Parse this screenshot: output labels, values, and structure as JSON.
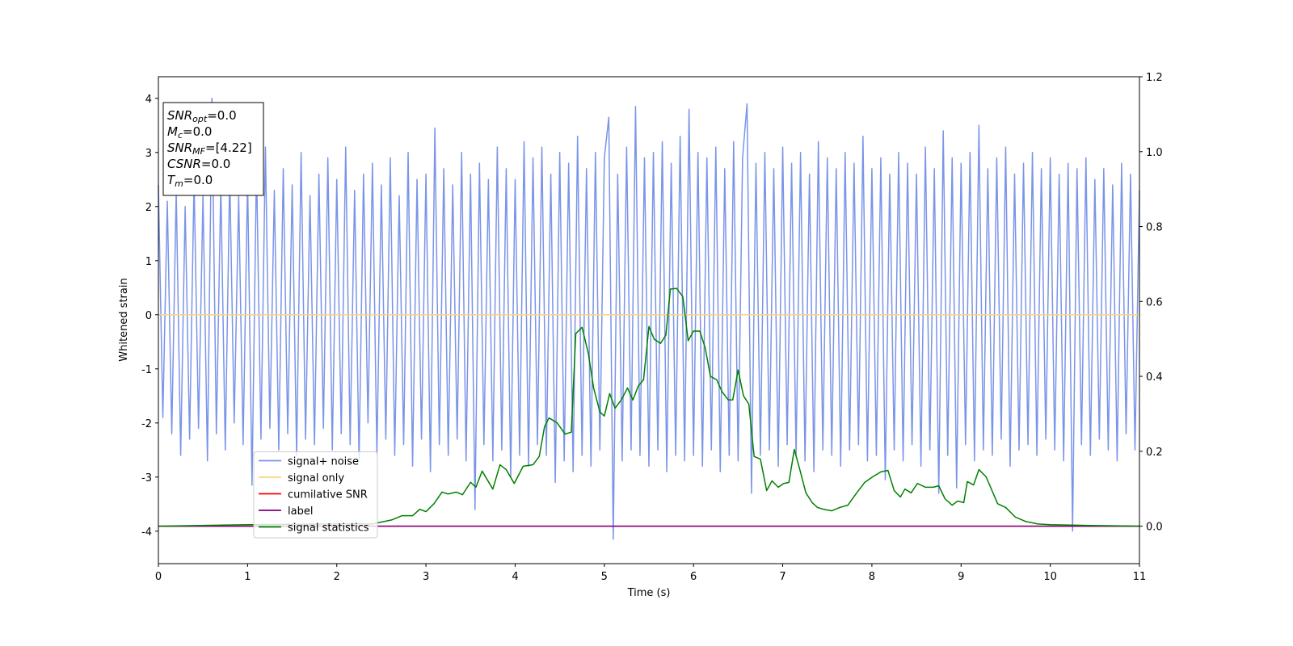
{
  "chart_data": {
    "type": "line",
    "xlabel": "Time (s)",
    "ylabel": "Whitened strain",
    "xlim": [
      0,
      11
    ],
    "ylim": [
      -4.6,
      4.4
    ],
    "y2lim": [
      -0.1,
      1.2
    ],
    "xticks": [
      0,
      1,
      2,
      3,
      4,
      5,
      6,
      7,
      8,
      9,
      10,
      11
    ],
    "yticks": [
      -4,
      -3,
      -2,
      -1,
      0,
      1,
      2,
      3,
      4
    ],
    "y2ticks": [
      {
        "value": 0,
        "label": "0.0"
      },
      0.2,
      0.4,
      0.6,
      0.8,
      {
        "value": 1,
        "label": "1.0"
      },
      1.2
    ],
    "legend": "lower left",
    "annotation": [
      {
        "text": "SNR",
        "sub": "opt",
        "value": "=0.0"
      },
      {
        "text": "M",
        "sub": "c",
        "value": "=0.0"
      },
      {
        "text": "SNR",
        "sub": "MF",
        "value": "=[4.22]"
      },
      {
        "text": "CSNR",
        "value": "=0.0"
      },
      {
        "text": "T",
        "sub": "m",
        "value": "=0.0"
      }
    ],
    "series": [
      {
        "name": "signal+ noise",
        "color": "#7a94e8",
        "x": [
          0,
          0.05,
          0.1,
          0.15,
          0.2,
          0.25,
          0.3,
          0.35,
          0.4,
          0.45,
          0.5,
          0.55,
          0.6,
          0.65,
          0.7,
          0.75,
          0.8,
          0.85,
          0.9,
          0.95,
          1,
          1.05,
          1.1,
          1.15,
          1.2,
          1.25,
          1.3,
          1.35,
          1.4,
          1.45,
          1.5,
          1.55,
          1.6,
          1.65,
          1.7,
          1.75,
          1.8,
          1.85,
          1.9,
          1.95,
          2,
          2.05,
          2.1,
          2.15,
          2.2,
          2.25,
          2.3,
          2.35,
          2.4,
          2.45,
          2.5,
          2.55,
          2.6,
          2.65,
          2.7,
          2.75,
          2.8,
          2.85,
          2.9,
          2.95,
          3,
          3.05,
          3.1,
          3.15,
          3.2,
          3.25,
          3.3,
          3.35,
          3.4,
          3.45,
          3.5,
          3.55,
          3.6,
          3.65,
          3.7,
          3.75,
          3.8,
          3.85,
          3.9,
          3.95,
          4,
          4.05,
          4.1,
          4.15,
          4.2,
          4.25,
          4.3,
          4.35,
          4.4,
          4.45,
          4.5,
          4.55,
          4.6,
          4.65,
          4.7,
          4.75,
          4.8,
          4.85,
          4.9,
          4.95,
          5,
          5.05,
          5.1,
          5.15,
          5.2,
          5.25,
          5.3,
          5.35,
          5.4,
          5.45,
          5.5,
          5.55,
          5.6,
          5.65,
          5.7,
          5.75,
          5.8,
          5.85,
          5.9,
          5.95,
          6,
          6.05,
          6.1,
          6.15,
          6.2,
          6.25,
          6.3,
          6.35,
          6.4,
          6.45,
          6.5,
          6.55,
          6.6,
          6.65,
          6.7,
          6.75,
          6.8,
          6.85,
          6.9,
          6.95,
          7,
          7.05,
          7.1,
          7.15,
          7.2,
          7.25,
          7.3,
          7.35,
          7.4,
          7.45,
          7.5,
          7.55,
          7.6,
          7.65,
          7.7,
          7.75,
          7.8,
          7.85,
          7.9,
          7.95,
          8,
          8.05,
          8.1,
          8.15,
          8.2,
          8.25,
          8.3,
          8.35,
          8.4,
          8.45,
          8.5,
          8.55,
          8.6,
          8.65,
          8.7,
          8.75,
          8.8,
          8.85,
          8.9,
          8.95,
          9,
          9.05,
          9.1,
          9.15,
          9.2,
          9.25,
          9.3,
          9.35,
          9.4,
          9.45,
          9.5,
          9.55,
          9.6,
          9.65,
          9.7,
          9.75,
          9.8,
          9.85,
          9.9,
          9.95,
          10,
          10.05,
          10.1,
          10.15,
          10.2,
          10.25,
          10.3,
          10.35,
          10.4,
          10.45,
          10.5,
          10.55,
          10.6,
          10.65,
          10.7,
          10.75,
          10.8,
          10.85,
          10.9,
          10.95,
          11
        ],
        "values": [
          2.4,
          -1.9,
          2.1,
          -2.2,
          2.3,
          -2.6,
          2.0,
          -2.3,
          2.5,
          -2.1,
          2.2,
          -2.7,
          4.0,
          -2.2,
          2.4,
          -2.5,
          2.6,
          -2.0,
          2.2,
          -2.4,
          2.5,
          -3.15,
          2.8,
          -2.3,
          3.1,
          -2.1,
          2.3,
          -2.5,
          2.7,
          -2.2,
          2.4,
          -2.6,
          3.0,
          -2.3,
          2.2,
          -2.4,
          2.6,
          -2.1,
          2.9,
          -2.5,
          2.5,
          -2.2,
          3.1,
          -2.4,
          2.3,
          -2.7,
          2.6,
          -2.0,
          2.8,
          -2.6,
          2.4,
          -2.3,
          2.9,
          -2.6,
          2.2,
          -2.4,
          3.0,
          -2.8,
          2.5,
          -2.3,
          2.6,
          -2.9,
          3.45,
          -2.4,
          2.7,
          -2.6,
          2.4,
          -2.3,
          3.0,
          -2.7,
          2.6,
          -3.6,
          2.8,
          -2.4,
          2.5,
          -2.7,
          3.1,
          -2.5,
          2.7,
          -3.0,
          2.5,
          -2.6,
          3.2,
          -2.8,
          2.9,
          -2.4,
          3.1,
          -2.6,
          2.6,
          -3.1,
          3.0,
          -2.7,
          2.8,
          -2.9,
          3.3,
          -2.6,
          2.7,
          -2.8,
          3.0,
          -2.5,
          2.9,
          3.65,
          -4.15,
          2.6,
          -2.7,
          3.1,
          -2.5,
          3.85,
          -2.6,
          2.9,
          -2.8,
          3.0,
          -2.5,
          3.2,
          -2.9,
          2.8,
          -2.6,
          3.3,
          -2.7,
          3.8,
          -2.6,
          3.0,
          -2.8,
          2.9,
          -2.5,
          3.1,
          -2.9,
          2.7,
          -2.6,
          3.2,
          -2.7,
          2.9,
          3.9,
          -3.3,
          2.8,
          -2.6,
          3.0,
          -2.5,
          2.7,
          -2.8,
          3.1,
          -2.4,
          2.8,
          -2.6,
          3.0,
          -2.7,
          2.6,
          -2.9,
          3.2,
          -2.5,
          2.9,
          -2.6,
          2.7,
          -2.8,
          3.0,
          -2.5,
          2.8,
          -2.4,
          3.3,
          -2.7,
          2.7,
          -2.6,
          2.9,
          -3.05,
          2.6,
          -2.5,
          3.0,
          -2.7,
          2.8,
          -2.4,
          2.6,
          -2.8,
          3.1,
          -2.5,
          2.7,
          -3.3,
          3.4,
          -2.6,
          2.9,
          -3.2,
          2.8,
          -2.4,
          3.0,
          -2.7,
          3.5,
          -2.5,
          2.7,
          -2.6,
          2.9,
          -2.3,
          3.1,
          -2.8,
          2.6,
          -2.5,
          2.8,
          -2.4,
          3.0,
          -2.6,
          2.7,
          -2.3,
          2.9,
          -2.5,
          2.6,
          -2.7,
          2.8,
          -4.0,
          2.7,
          -2.4,
          2.9,
          -2.6,
          2.5,
          -2.3,
          2.7,
          -2.5,
          2.4,
          -2.7,
          2.8,
          -2.2,
          2.6,
          -2.5,
          2.3
        ]
      },
      {
        "name": "signal only",
        "color": "#ffd27f",
        "x": [
          0,
          11
        ],
        "values": [
          0,
          0
        ]
      },
      {
        "name": "cumilative SNR",
        "color": "red",
        "axis": "y2",
        "x": [
          0,
          11
        ],
        "values": [
          0,
          0
        ]
      },
      {
        "name": "label",
        "color": "purple",
        "axis": "y2",
        "x": [
          0,
          11
        ],
        "values": [
          0,
          0
        ]
      },
      {
        "name": "signal statistics",
        "color": "green",
        "axis": "y2",
        "x": [
          0,
          1,
          2,
          2.4,
          2.62,
          2.73,
          2.85,
          2.93,
          3,
          3.09,
          3.18,
          3.25,
          3.34,
          3.41,
          3.5,
          3.56,
          3.63,
          3.75,
          3.83,
          3.9,
          3.99,
          4.09,
          4.2,
          4.27,
          4.33,
          4.38,
          4.47,
          4.56,
          4.63,
          4.68,
          4.75,
          4.82,
          4.88,
          4.95,
          5,
          5.06,
          5.12,
          5.19,
          5.26,
          5.32,
          5.38,
          5.44,
          5.5,
          5.56,
          5.63,
          5.69,
          5.74,
          5.81,
          5.88,
          5.94,
          6,
          6.07,
          6.13,
          6.19,
          6.26,
          6.32,
          6.39,
          6.44,
          6.5,
          6.56,
          6.62,
          6.68,
          6.75,
          6.82,
          6.88,
          6.95,
          7.01,
          7.07,
          7.13,
          7.19,
          7.26,
          7.33,
          7.39,
          7.46,
          7.55,
          7.64,
          7.73,
          7.83,
          7.92,
          8.01,
          8.1,
          8.18,
          8.25,
          8.32,
          8.37,
          8.44,
          8.51,
          8.6,
          8.69,
          8.75,
          8.82,
          8.9,
          8.96,
          9.03,
          9.07,
          9.14,
          9.2,
          9.28,
          9.41,
          9.5,
          9.61,
          9.72,
          9.86,
          10,
          10.45,
          11
        ],
        "values": [
          0,
          0.004,
          0.006,
          0.006,
          0.017,
          0.028,
          0.028,
          0.045,
          0.039,
          0.06,
          0.091,
          0.086,
          0.091,
          0.084,
          0.117,
          0.104,
          0.147,
          0.099,
          0.164,
          0.151,
          0.114,
          0.16,
          0.164,
          0.186,
          0.266,
          0.289,
          0.276,
          0.246,
          0.251,
          0.514,
          0.531,
          0.462,
          0.369,
          0.305,
          0.294,
          0.354,
          0.315,
          0.337,
          0.369,
          0.337,
          0.374,
          0.391,
          0.533,
          0.499,
          0.488,
          0.51,
          0.633,
          0.635,
          0.613,
          0.495,
          0.521,
          0.521,
          0.477,
          0.4,
          0.391,
          0.359,
          0.337,
          0.337,
          0.417,
          0.348,
          0.326,
          0.186,
          0.179,
          0.095,
          0.121,
          0.104,
          0.114,
          0.117,
          0.205,
          0.153,
          0.089,
          0.063,
          0.05,
          0.045,
          0.041,
          0.05,
          0.056,
          0.089,
          0.117,
          0.132,
          0.145,
          0.149,
          0.095,
          0.078,
          0.099,
          0.089,
          0.114,
          0.104,
          0.104,
          0.108,
          0.073,
          0.056,
          0.067,
          0.063,
          0.119,
          0.11,
          0.151,
          0.132,
          0.06,
          0.05,
          0.024,
          0.013,
          0.006,
          0.004,
          0.002,
          0
        ]
      }
    ]
  }
}
